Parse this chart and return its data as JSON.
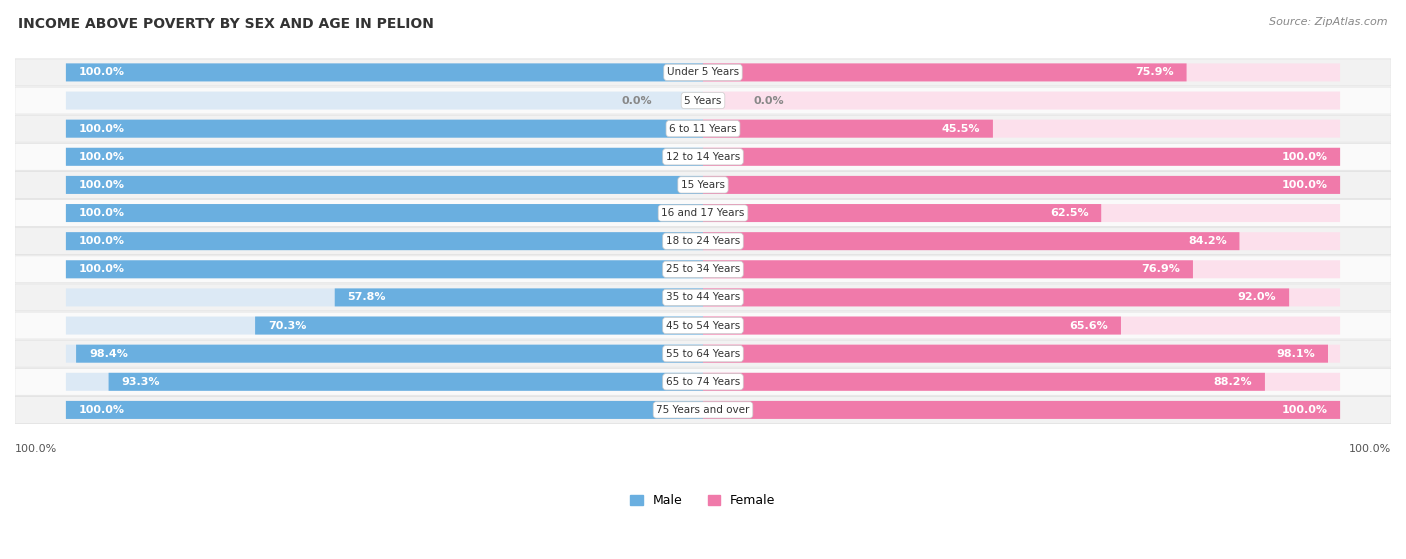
{
  "title": "INCOME ABOVE POVERTY BY SEX AND AGE IN PELION",
  "source": "Source: ZipAtlas.com",
  "categories": [
    "Under 5 Years",
    "5 Years",
    "6 to 11 Years",
    "12 to 14 Years",
    "15 Years",
    "16 and 17 Years",
    "18 to 24 Years",
    "25 to 34 Years",
    "35 to 44 Years",
    "45 to 54 Years",
    "55 to 64 Years",
    "65 to 74 Years",
    "75 Years and over"
  ],
  "male_values": [
    100.0,
    0.0,
    100.0,
    100.0,
    100.0,
    100.0,
    100.0,
    100.0,
    57.8,
    70.3,
    98.4,
    93.3,
    100.0
  ],
  "female_values": [
    75.9,
    0.0,
    45.5,
    100.0,
    100.0,
    62.5,
    84.2,
    76.9,
    92.0,
    65.6,
    98.1,
    88.2,
    100.0
  ],
  "male_color": "#6aafe0",
  "female_color": "#f07aaa",
  "male_bg_color": "#dce9f5",
  "female_bg_color": "#fce0ec",
  "male_label": "Male",
  "female_label": "Female",
  "row_bg_even": "#f2f2f2",
  "row_bg_odd": "#fafafa",
  "title_fontsize": 10,
  "source_fontsize": 8,
  "label_fontsize": 8,
  "category_fontsize": 7.5,
  "legend_fontsize": 9,
  "bottom_left_label": "100.0%",
  "bottom_right_label": "100.0%"
}
